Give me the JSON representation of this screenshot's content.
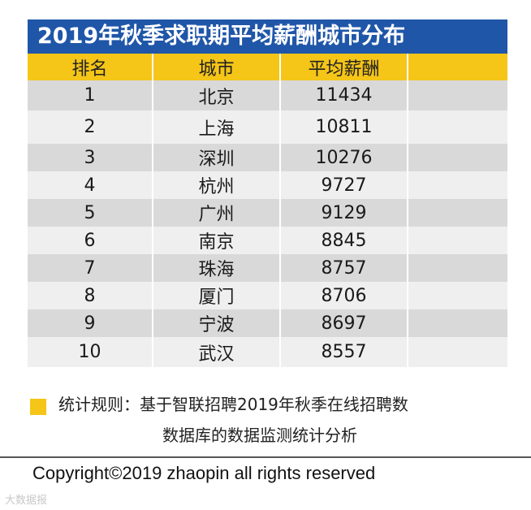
{
  "title": "2019年秋季求职期平均薪酬城市分布",
  "colors": {
    "title_bg": "#1f56a8",
    "header_bg": "#f5c518",
    "row_dark": "#d9d9d9",
    "row_light": "#efefef"
  },
  "chart_data": {
    "type": "table",
    "title": "2019年秋季求职期平均薪酬城市分布",
    "columns": [
      "排名",
      "城市",
      "平均薪酬"
    ],
    "rows": [
      {
        "rank": "1",
        "city": "北京",
        "salary": "11434"
      },
      {
        "rank": "2",
        "city": "上海",
        "salary": "10811"
      },
      {
        "rank": "3",
        "city": "深圳",
        "salary": "10276"
      },
      {
        "rank": "4",
        "city": "杭州",
        "salary": "9727"
      },
      {
        "rank": "5",
        "city": "广州",
        "salary": "9129"
      },
      {
        "rank": "6",
        "city": "南京",
        "salary": "8845"
      },
      {
        "rank": "7",
        "city": "珠海",
        "salary": "8757"
      },
      {
        "rank": "8",
        "city": "厦门",
        "salary": "8706"
      },
      {
        "rank": "9",
        "city": "宁波",
        "salary": "8697"
      },
      {
        "rank": "10",
        "city": "武汉",
        "salary": "8557"
      }
    ]
  },
  "note": {
    "line1": "统计规则：基于智联招聘2019年秋季在线招聘数",
    "line2": "数据库的数据监测统计分析"
  },
  "copyright": "Copyright©2019 zhaopin all rights reserved",
  "watermark": "大数据报"
}
